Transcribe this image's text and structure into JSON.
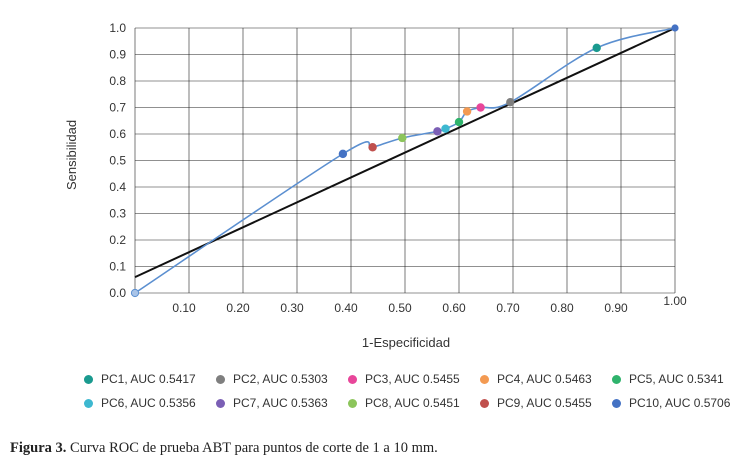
{
  "chart_data": {
    "type": "line",
    "xlabel": "1-Especificidad",
    "ylabel": "Sensibilidad",
    "xlim": [
      0,
      1
    ],
    "ylim": [
      0,
      1
    ],
    "x_ticks": [
      "0.10",
      "0.20",
      "0.30",
      "0.40",
      "0.50",
      "0.60",
      "0.70",
      "0.80",
      "0.90",
      "1.00"
    ],
    "y_ticks": [
      "0.0",
      "0.1",
      "0.2",
      "0.3",
      "0.4",
      "0.5",
      "0.6",
      "0.7",
      "0.8",
      "0.9",
      "1.0"
    ],
    "grid": true,
    "curve_color": "#5b8fd0",
    "reference_color": "#111111",
    "roc_curve": [
      {
        "x": 0.0,
        "y": 0.0
      },
      {
        "x": 0.385,
        "y": 0.525
      },
      {
        "x": 0.44,
        "y": 0.55
      },
      {
        "x": 0.495,
        "y": 0.585
      },
      {
        "x": 0.56,
        "y": 0.61
      },
      {
        "x": 0.575,
        "y": 0.62
      },
      {
        "x": 0.6,
        "y": 0.645
      },
      {
        "x": 0.615,
        "y": 0.685
      },
      {
        "x": 0.64,
        "y": 0.7
      },
      {
        "x": 0.695,
        "y": 0.72
      },
      {
        "x": 0.855,
        "y": 0.925
      },
      {
        "x": 1.0,
        "y": 1.0
      }
    ],
    "reference_line": [
      {
        "x": 0.0,
        "y": 0.06
      },
      {
        "x": 1.0,
        "y": 1.0
      }
    ],
    "series": [
      {
        "name": "PC1, AUC 0.5417",
        "x": 0.855,
        "y": 0.925,
        "color": "#1a9a8f"
      },
      {
        "name": "PC2, AUC 0.5303",
        "x": 0.695,
        "y": 0.72,
        "color": "#7f7f7f"
      },
      {
        "name": "PC3, AUC 0.5455",
        "x": 0.64,
        "y": 0.7,
        "color": "#e8469a"
      },
      {
        "name": "PC4, AUC 0.5463",
        "x": 0.615,
        "y": 0.685,
        "color": "#f39a52"
      },
      {
        "name": "PC5, AUC 0.5341",
        "x": 0.6,
        "y": 0.645,
        "color": "#2fb36c"
      },
      {
        "name": "PC6, AUC 0.5356",
        "x": 0.575,
        "y": 0.62,
        "color": "#3db8d0"
      },
      {
        "name": "PC7, AUC 0.5363",
        "x": 0.56,
        "y": 0.61,
        "color": "#7b5fb5"
      },
      {
        "name": "PC8, AUC 0.5451",
        "x": 0.495,
        "y": 0.585,
        "color": "#8cc55b"
      },
      {
        "name": "PC9, AUC 0.5455",
        "x": 0.44,
        "y": 0.55,
        "color": "#c0504d"
      },
      {
        "name": "PC10, AUC 0.5706",
        "x": 0.385,
        "y": 0.525,
        "color": "#4472c4"
      }
    ],
    "endpoints": [
      {
        "x": 0.0,
        "y": 0.0,
        "color": "#a9c4e8"
      },
      {
        "x": 1.0,
        "y": 1.0,
        "color": "#4472c4"
      }
    ],
    "legend_position": "bottom"
  },
  "caption": {
    "label": "Figura 3.",
    "text": " Curva ROC de prueba ABT para puntos de corte de 1 a 10 mm."
  }
}
